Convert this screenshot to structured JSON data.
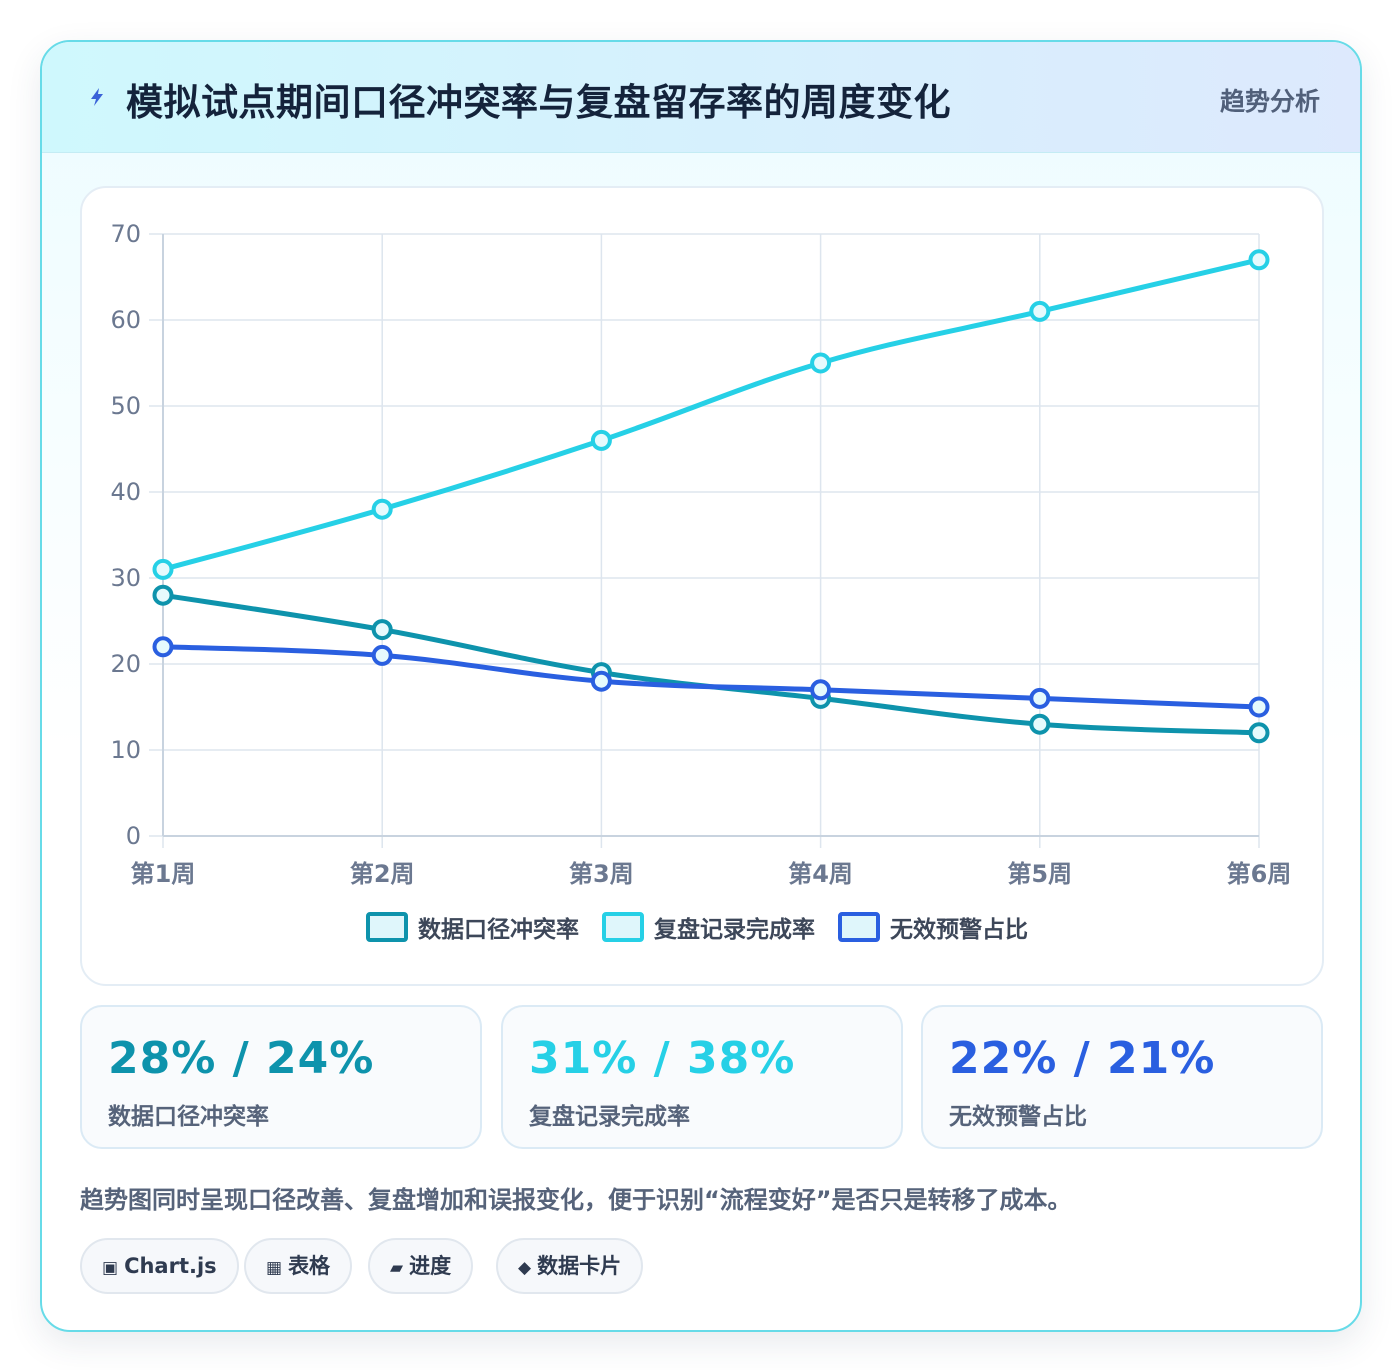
{
  "header": {
    "title": "模拟试点期间口径冲突率与复盘留存率的周度变化",
    "tag": "趋势分析",
    "icon": "lightning-icon"
  },
  "colors": {
    "series1": "#0e93ac",
    "series2": "#26d0e6",
    "series3": "#2a5fe0",
    "grid": "#dde5ee",
    "axis_text": "#6b7890"
  },
  "chart_data": {
    "type": "line",
    "title": "",
    "xlabel": "",
    "ylabel": "",
    "categories": [
      "第1周",
      "第2周",
      "第3周",
      "第4周",
      "第5周",
      "第6周"
    ],
    "ylim": [
      0,
      70
    ],
    "yticks": [
      0,
      10,
      20,
      30,
      40,
      50,
      60,
      70
    ],
    "grid": true,
    "legend": "bottom",
    "series": [
      {
        "name": "数据口径冲突率",
        "values": [
          28,
          24,
          19,
          16,
          13,
          12
        ],
        "color": "#0e93ac"
      },
      {
        "name": "复盘记录完成率",
        "values": [
          31,
          38,
          46,
          55,
          61,
          67
        ],
        "color": "#26d0e6"
      },
      {
        "name": "无效预警占比",
        "values": [
          22,
          21,
          18,
          17,
          16,
          15
        ],
        "color": "#2a5fe0"
      }
    ]
  },
  "stats": [
    {
      "value": "28% / 24%",
      "label": "数据口径冲突率",
      "color": "#0e93ac"
    },
    {
      "value": "31% / 38%",
      "label": "复盘记录完成率",
      "color": "#26d0e6"
    },
    {
      "value": "22% / 21%",
      "label": "无效预警占比",
      "color": "#2a5fe0"
    }
  ],
  "description": "趋势图同时呈现口径改善、复盘增加和误报变化，便于识别“流程变好”是否只是转移了成本。",
  "tags": [
    {
      "icon": "▣",
      "label": "Chart.js"
    },
    {
      "icon": "▦",
      "label": "表格"
    },
    {
      "icon": "▰",
      "label": "进度"
    },
    {
      "icon": "◆",
      "label": "数据卡片"
    }
  ]
}
